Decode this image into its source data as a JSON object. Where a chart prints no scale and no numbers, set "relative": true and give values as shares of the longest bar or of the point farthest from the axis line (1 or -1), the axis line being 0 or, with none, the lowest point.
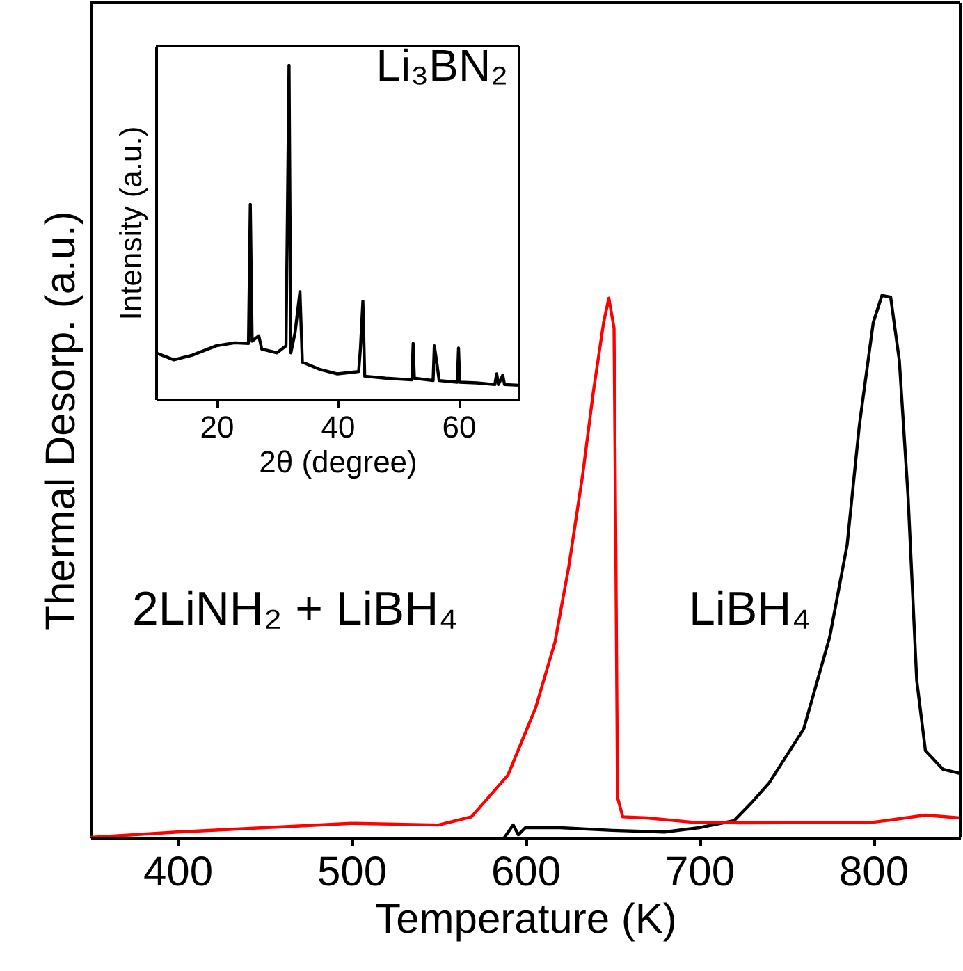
{
  "chart_data": [
    {
      "type": "line",
      "xlabel": "Temperature (K)",
      "ylabel": "Thermal Desorp. (a.u.)",
      "xlim": [
        350,
        850
      ],
      "xticks": [
        400,
        500,
        600,
        700,
        800
      ],
      "relative": true,
      "grid": false,
      "tick_labels": "x",
      "series": [
        {
          "name": "LiBH₄",
          "color": "#000000",
          "x": [
            588,
            593,
            596,
            600,
            620,
            650,
            680,
            700,
            720,
            730,
            740,
            760,
            775,
            785,
            792,
            800,
            805,
            810,
            815,
            820,
            825,
            830,
            840,
            850
          ],
          "values": [
            0,
            0.023,
            0.005,
            0.018,
            0.018,
            0.013,
            0.01,
            0.018,
            0.031,
            0.064,
            0.1,
            0.2,
            0.37,
            0.54,
            0.76,
            0.95,
            1.0,
            0.997,
            0.88,
            0.63,
            0.29,
            0.16,
            0.126,
            0.118
          ]
        },
        {
          "name": "2LiNH₂ + LiBH₄",
          "color": "#ff0000",
          "x": [
            350,
            400,
            450,
            500,
            550,
            569,
            590,
            606,
            617,
            625,
            633,
            639,
            645,
            648,
            651,
            652,
            653,
            656,
            670,
            696,
            724,
            800,
            830,
            850
          ],
          "values": [
            0,
            0.01,
            0.018,
            0.026,
            0.023,
            0.038,
            0.115,
            0.24,
            0.36,
            0.5,
            0.67,
            0.82,
            0.95,
            0.995,
            0.94,
            0.54,
            0.074,
            0.038,
            0.036,
            0.028,
            0.027,
            0.028,
            0.041,
            0.036
          ]
        }
      ]
    },
    {
      "type": "line",
      "xlabel": "2θ (degree)",
      "ylabel": "Intensity (a.u.)",
      "xlim": [
        10,
        70
      ],
      "xticks": [
        20,
        40,
        60
      ],
      "relative": true,
      "grid": false,
      "tick_labels": "x",
      "annotations": [
        "Li₃BN₂"
      ],
      "series": [
        {
          "color": "#000000",
          "x": [
            10,
            13,
            16,
            20,
            23,
            25.3,
            25.6,
            25.9,
            27,
            27.5,
            30,
            31.5,
            32,
            32.3,
            33,
            33.8,
            34.2,
            37,
            40,
            43.5,
            43.8,
            44.2,
            44.5,
            48,
            52.3,
            52.5,
            52.7,
            55.8,
            56,
            56.4,
            56.8,
            59.8,
            60,
            60.2,
            63,
            66,
            66.3,
            66.6,
            67.3,
            67.6,
            70
          ],
          "values": [
            0.139,
            0.118,
            0.132,
            0.16,
            0.169,
            0.167,
            0.583,
            0.174,
            0.19,
            0.15,
            0.139,
            0.16,
            1.0,
            0.139,
            0.2,
            0.322,
            0.111,
            0.09,
            0.076,
            0.083,
            0.153,
            0.294,
            0.069,
            0.063,
            0.058,
            0.167,
            0.063,
            0.056,
            0.16,
            0.111,
            0.056,
            0.051,
            0.153,
            0.051,
            0.049,
            0.044,
            0.076,
            0.044,
            0.072,
            0.044,
            0.042
          ]
        }
      ]
    }
  ]
}
